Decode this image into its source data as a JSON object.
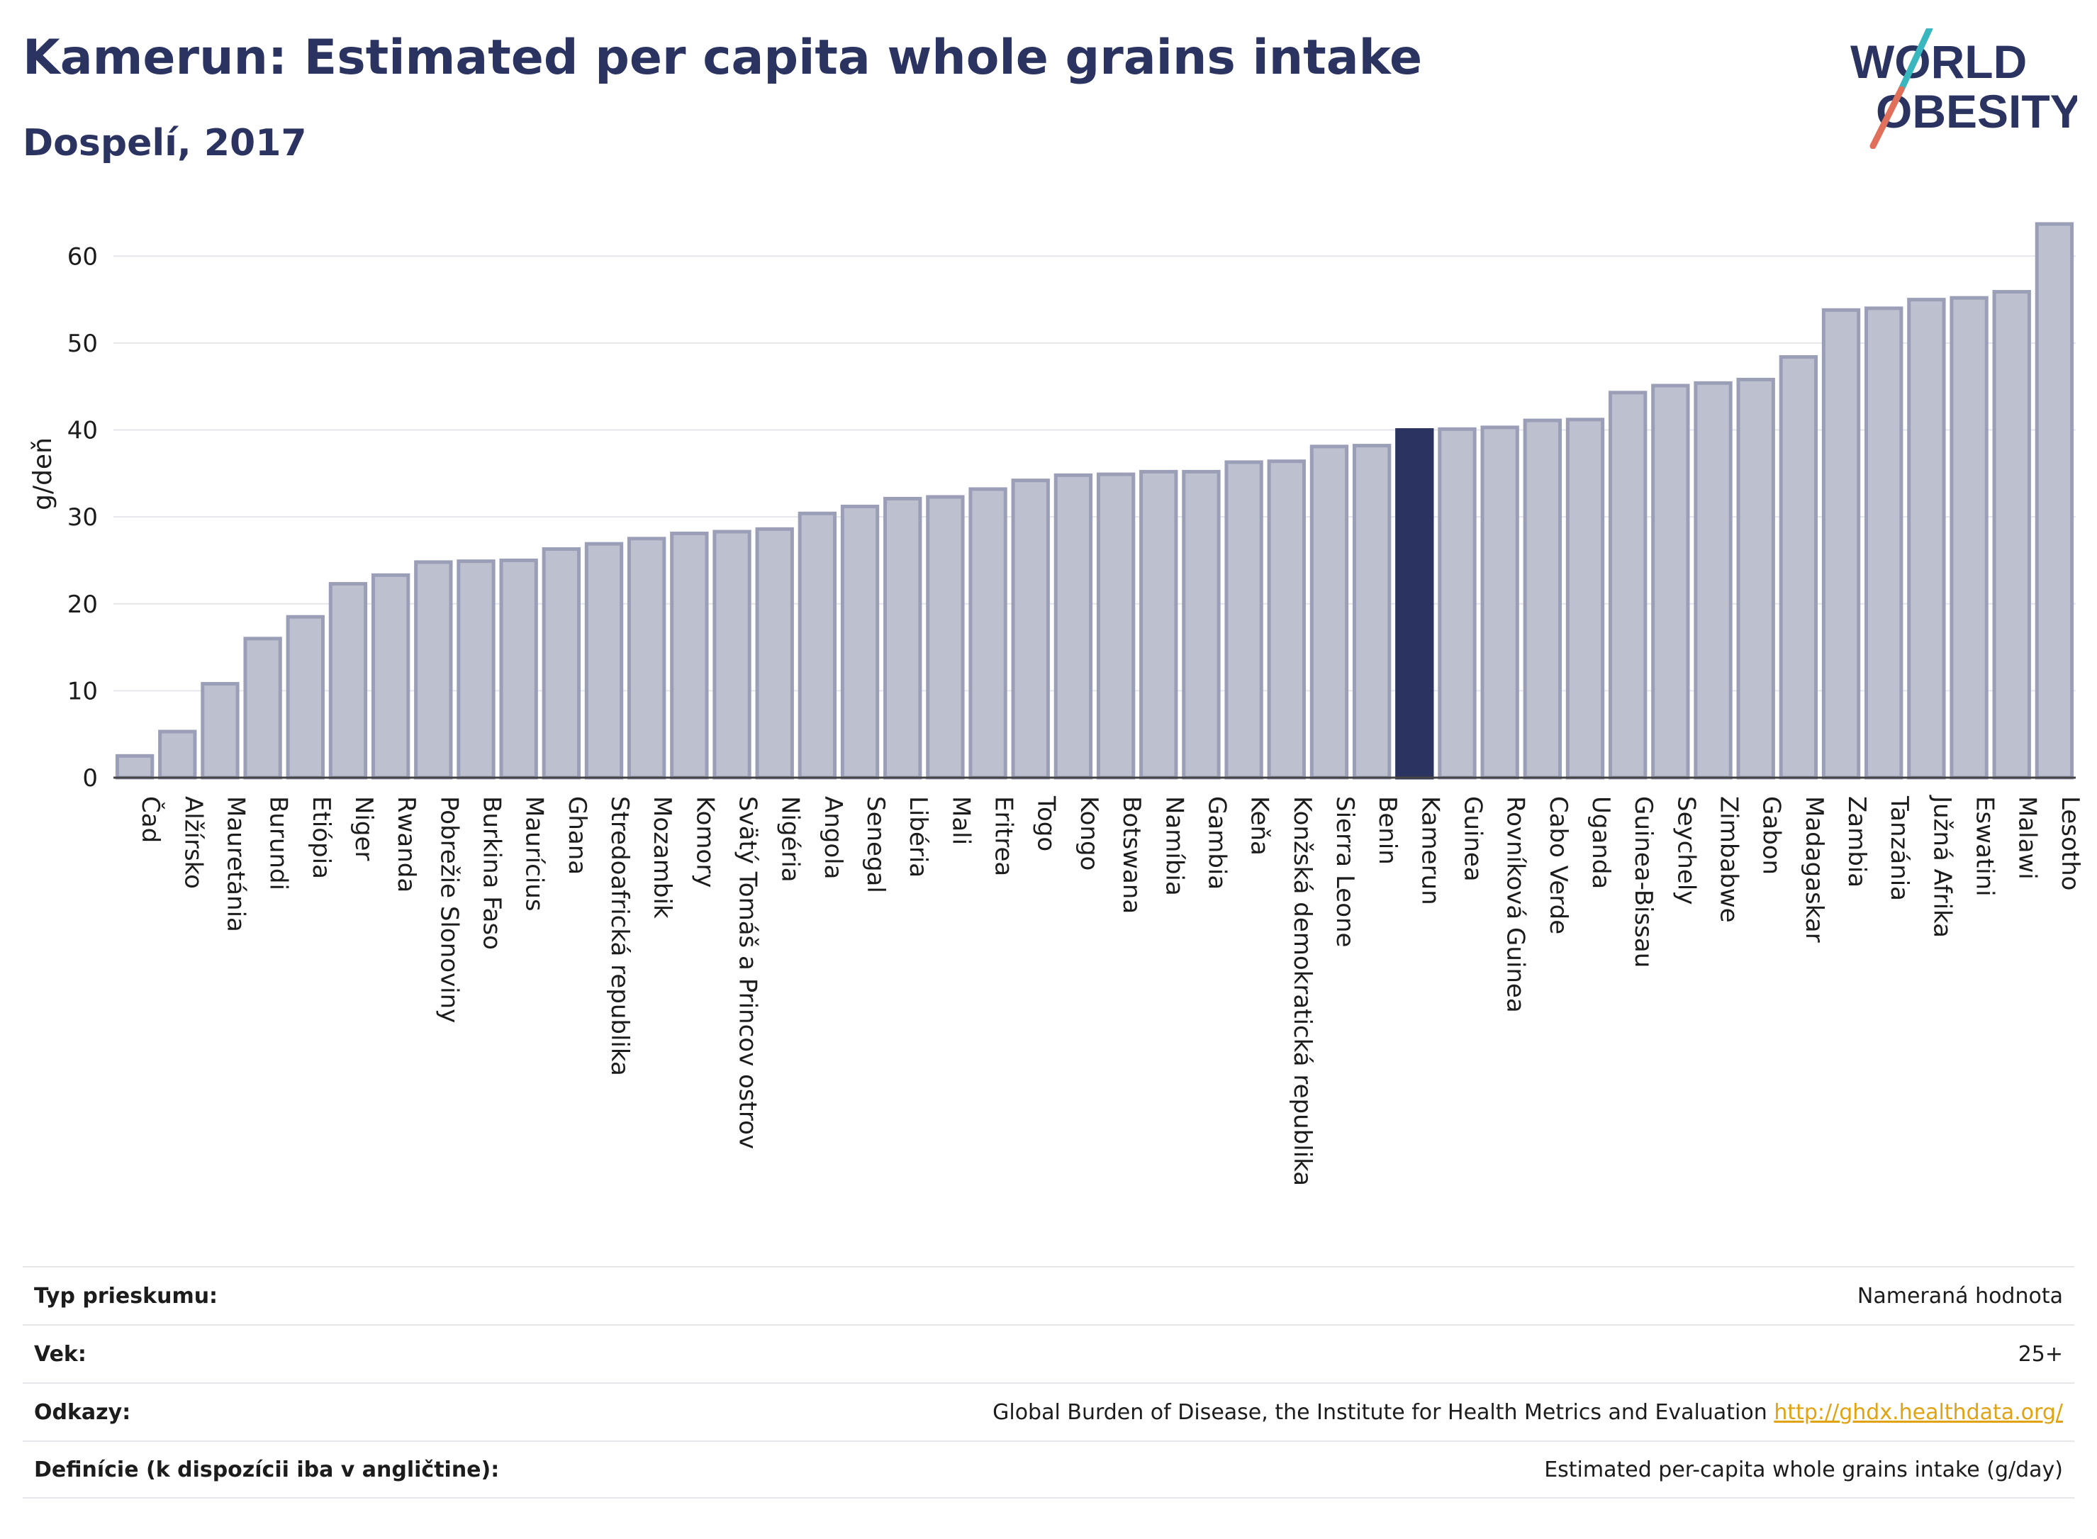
{
  "header": {
    "title": "Kamerun: Estimated per capita whole grains intake",
    "subtitle": "Dospelí, 2017"
  },
  "logo": {
    "line1": "WORLD",
    "line2": "OBESITY"
  },
  "colors": {
    "bar": "#bcc0cf",
    "bar_border": "#9a9fb7",
    "highlight": "#2b3460",
    "text": "#2b3460"
  },
  "chart_data": {
    "type": "bar",
    "ylabel": "g/deň",
    "ylim": [
      0,
      65
    ],
    "yticks": [
      0,
      10,
      20,
      30,
      40,
      50,
      60
    ],
    "grid": true,
    "highlight": "Kamerun",
    "categories": [
      "Čad",
      "Alžírsko",
      "Mauretánia",
      "Burundi",
      "Etiópia",
      "Niger",
      "Rwanda",
      "Pobrežie Slonoviny",
      "Burkina Faso",
      "Maurícius",
      "Ghana",
      "Stredoafrická republika",
      "Mozambik",
      "Komory",
      "Svätý Tomáš a Princov ostrov",
      "Nigéria",
      "Angola",
      "Senegal",
      "Libéria",
      "Mali",
      "Eritrea",
      "Togo",
      "Kongo",
      "Botswana",
      "Namíbia",
      "Gambia",
      "Keňa",
      "Konžská demokratická republika",
      "Sierra Leone",
      "Benin",
      "Kamerun",
      "Guinea",
      "Rovníková Guinea",
      "Cabo Verde",
      "Uganda",
      "Guinea-Bissau",
      "Seychely",
      "Zimbabwe",
      "Gabon",
      "Madagaskar",
      "Zambia",
      "Tanzánia",
      "Južná Afrika",
      "Eswatini",
      "Malawi",
      "Lesotho"
    ],
    "values": [
      2.5,
      5.3,
      10.8,
      16.0,
      18.5,
      22.3,
      23.3,
      24.8,
      24.9,
      25.0,
      26.3,
      26.9,
      27.5,
      28.1,
      28.3,
      28.6,
      30.4,
      31.2,
      32.1,
      32.3,
      33.2,
      34.2,
      34.8,
      34.9,
      35.2,
      35.2,
      36.3,
      36.4,
      38.1,
      38.2,
      40.0,
      40.1,
      40.3,
      41.1,
      41.2,
      44.3,
      45.1,
      45.4,
      45.8,
      48.4,
      53.8,
      54.0,
      55.0,
      55.2,
      55.9,
      63.7
    ]
  },
  "info": {
    "rows": [
      {
        "label": "Typ prieskumu:",
        "value": "Nameraná hodnota",
        "link": ""
      },
      {
        "label": "Vek:",
        "value": "25+",
        "link": ""
      },
      {
        "label": "Odkazy:",
        "value": "Global Burden of Disease, the Institute for Health Metrics and Evaluation",
        "link": "http://ghdx.healthdata.org/"
      },
      {
        "label": "Definície (k dispozícii iba v angličtine):",
        "value": "Estimated per-capita whole grains intake (g/day)",
        "link": ""
      }
    ]
  }
}
